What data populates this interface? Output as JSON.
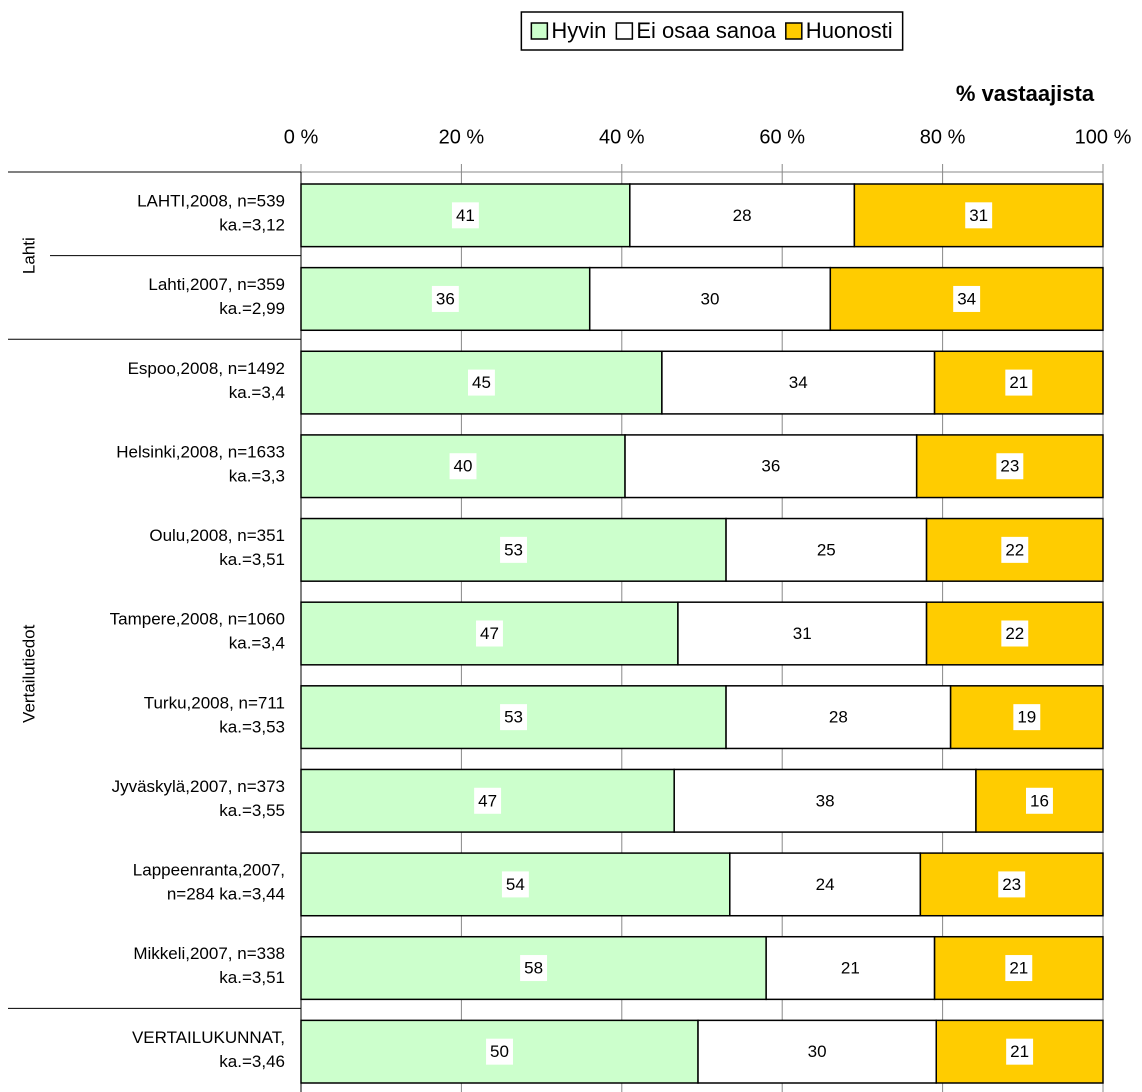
{
  "chart_data": {
    "type": "bar",
    "orientation": "horizontal",
    "stacked": "percent",
    "axis_title": "% vastaajista",
    "categories": [
      [
        "LAHTI,2008, n=539",
        "ka.=3,12"
      ],
      [
        "Lahti,2007, n=359",
        "ka.=2,99"
      ],
      [
        "Espoo,2008, n=1492",
        "ka.=3,4"
      ],
      [
        "Helsinki,2008, n=1633",
        "ka.=3,3"
      ],
      [
        "Oulu,2008, n=351",
        "ka.=3,51"
      ],
      [
        "Tampere,2008, n=1060",
        "ka.=3,4"
      ],
      [
        "Turku,2008, n=711",
        "ka.=3,53"
      ],
      [
        "Jyväskylä,2007, n=373",
        "ka.=3,55"
      ],
      [
        "Lappeenranta,2007,",
        "n=284 ka.=3,44"
      ],
      [
        "Mikkeli,2007, n=338",
        "ka.=3,51"
      ],
      [
        "VERTAILUKUNNAT,",
        "ka.=3,46"
      ]
    ],
    "groups": [
      {
        "name": "Lahti",
        "size": 2
      },
      {
        "name": "Vertailutiedot",
        "size": 8
      },
      {
        "name": null,
        "size": 1
      }
    ],
    "series": [
      {
        "name": "Hyvin",
        "color": "#ccffcc",
        "values": [
          41,
          36,
          45,
          40,
          53,
          47,
          53,
          47,
          54,
          58,
          50
        ]
      },
      {
        "name": "Ei osaa sanoa",
        "color": "#ffffff",
        "values": [
          28,
          30,
          34,
          36,
          25,
          31,
          28,
          38,
          24,
          21,
          30
        ]
      },
      {
        "name": "Huonosti",
        "color": "#ffcc00",
        "values": [
          31,
          34,
          21,
          23,
          22,
          22,
          19,
          16,
          23,
          21,
          21
        ]
      }
    ],
    "xlim": [
      0,
      100
    ],
    "xticks": [
      {
        "value": 0,
        "label": "0 %"
      },
      {
        "value": 20,
        "label": "20 %"
      },
      {
        "value": 40,
        "label": "40 %"
      },
      {
        "value": 60,
        "label": "60 %"
      },
      {
        "value": 80,
        "label": "80 %"
      },
      {
        "value": 100,
        "label": "100 %"
      }
    ],
    "grid": true,
    "legend": "top"
  }
}
